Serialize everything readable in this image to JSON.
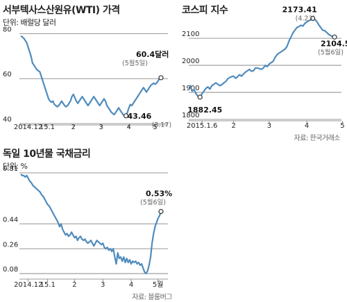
{
  "colors": {
    "line": "#4f8bbd",
    "grid": "#777777",
    "text": "#222222",
    "muted": "#666666"
  },
  "chart_data": [
    {
      "type": "line",
      "title": "서부텍사스산원유(WTI) 가격",
      "unit_label": "단위: 배럴당 달러",
      "ylim": [
        40,
        82
      ],
      "y_ticks": [
        "80",
        "60",
        "40"
      ],
      "y_tick_values": [
        80,
        60,
        40
      ],
      "x_tick_labels": [
        "2014.12",
        "15.1",
        "2",
        "3",
        "4",
        "5"
      ],
      "x_tick_values": [
        5,
        18,
        36,
        55,
        74,
        92
      ],
      "series": [
        {
          "values": [
            79,
            78.5,
            78,
            77,
            76,
            74,
            72,
            70,
            67,
            66,
            65,
            64,
            63.5,
            63,
            61,
            59,
            57,
            55,
            53,
            51,
            50,
            49.5,
            50,
            48.5,
            48,
            47.5,
            48,
            49,
            50,
            49,
            48,
            47.5,
            48,
            49,
            50,
            52,
            53,
            51.5,
            50,
            49,
            50,
            51,
            52,
            51,
            50,
            49,
            48,
            49,
            50,
            51,
            52,
            51,
            50,
            49,
            48,
            49,
            50,
            51,
            50,
            48,
            47,
            46,
            45,
            44.5,
            44,
            45,
            46,
            47,
            46,
            45,
            44,
            43.5,
            43.46,
            45,
            47,
            48.5,
            48,
            49,
            50,
            51,
            52,
            53,
            54,
            55,
            56,
            55,
            54,
            55,
            56,
            57,
            57.5,
            58,
            57.5,
            58,
            59,
            60,
            60.4
          ]
        }
      ],
      "annotations": [
        {
          "label": "43.46",
          "sub": "(3.17)"
        },
        {
          "label": "60.4달러",
          "sub": "(5월5일)"
        }
      ]
    },
    {
      "type": "line",
      "title": "코스피 지수",
      "ylim": [
        1800,
        2185
      ],
      "y_ticks": [
        "2100",
        "2000",
        "1900",
        "1800"
      ],
      "y_tick_values": [
        2100,
        2000,
        1900,
        1800
      ],
      "x_tick_labels": [
        "2015.1.6",
        "2",
        "3",
        "4",
        "5"
      ],
      "x_tick_values": [
        6,
        22,
        40,
        59,
        77
      ],
      "series": [
        {
          "values": [
            1927,
            1905,
            1910,
            1895,
            1885,
            1882.45,
            1895,
            1905,
            1915,
            1920,
            1912,
            1925,
            1930,
            1935,
            1930,
            1925,
            1928,
            1935,
            1940,
            1950,
            1955,
            1958,
            1960,
            1952,
            1958,
            1965,
            1960,
            1968,
            1975,
            1980,
            1985,
            1978,
            1980,
            1990,
            1990,
            1988,
            1985,
            1990,
            2000,
            1995,
            2005,
            2010,
            2015,
            2030,
            2040,
            2045,
            2050,
            2055,
            2060,
            2070,
            2090,
            2105,
            2120,
            2130,
            2140,
            2143,
            2148,
            2145,
            2155,
            2160,
            2165,
            2168,
            2173.41,
            2170,
            2162,
            2150,
            2140,
            2130,
            2128,
            2122,
            2115,
            2110,
            2106,
            2104.58
          ]
        }
      ],
      "annotations": [
        {
          "label": "1882.45",
          "sub": ""
        },
        {
          "label": "2173.41",
          "sub": "(4.23)"
        },
        {
          "label": "2104.58",
          "sub": "(5월6일)"
        }
      ],
      "source": "자료: 한국거래소"
    },
    {
      "type": "line",
      "title": "독일 10년물 국채금리",
      "unit_label": "단위: %",
      "ylim": [
        0.05,
        0.83
      ],
      "y_ticks": [
        "0.81",
        "0.44",
        "0.26",
        "0.08"
      ],
      "y_tick_values": [
        0.81,
        0.44,
        0.26,
        0.08
      ],
      "x_tick_labels": [
        "2014.12",
        "15.1",
        "2",
        "3",
        "4",
        "5월"
      ],
      "x_tick_values": [
        5,
        18,
        36,
        55,
        74,
        92
      ],
      "series": [
        {
          "values": [
            0.8,
            0.79,
            0.79,
            0.78,
            0.79,
            0.77,
            0.75,
            0.74,
            0.72,
            0.71,
            0.7,
            0.69,
            0.68,
            0.67,
            0.65,
            0.64,
            0.62,
            0.6,
            0.58,
            0.57,
            0.55,
            0.53,
            0.51,
            0.49,
            0.47,
            0.45,
            0.42,
            0.44,
            0.4,
            0.38,
            0.36,
            0.37,
            0.35,
            0.36,
            0.38,
            0.36,
            0.34,
            0.35,
            0.32,
            0.34,
            0.35,
            0.33,
            0.32,
            0.33,
            0.31,
            0.3,
            0.31,
            0.32,
            0.3,
            0.28,
            0.3,
            0.32,
            0.31,
            0.3,
            0.29,
            0.3,
            0.27,
            0.26,
            0.27,
            0.25,
            0.26,
            0.24,
            0.26,
            0.2,
            0.15,
            0.23,
            0.19,
            0.2,
            0.17,
            0.2,
            0.16,
            0.19,
            0.16,
            0.18,
            0.15,
            0.17,
            0.16,
            0.17,
            0.15,
            0.16,
            0.14,
            0.15,
            0.12,
            0.09,
            0.08,
            0.1,
            0.14,
            0.2,
            0.3,
            0.37,
            0.42,
            0.45,
            0.48,
            0.5,
            0.53
          ]
        }
      ],
      "annotations": [
        {
          "label": "0.53%",
          "sub": "(5월6일)"
        }
      ],
      "source": "자료: 블룸버그"
    }
  ]
}
